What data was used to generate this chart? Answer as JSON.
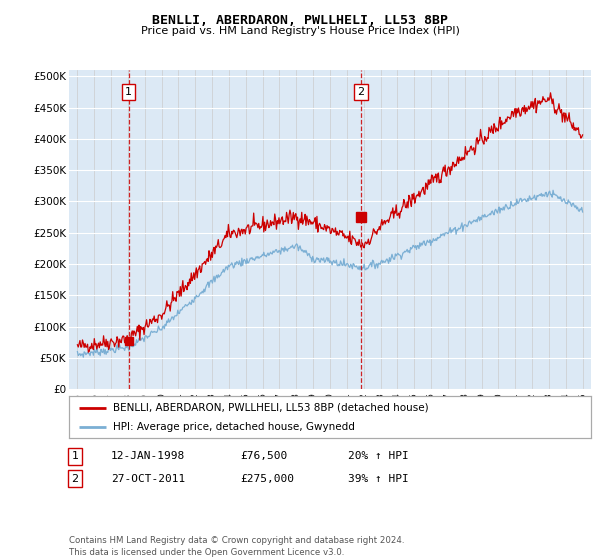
{
  "title": "BENLLI, ABERDARON, PWLLHELI, LL53 8BP",
  "subtitle": "Price paid vs. HM Land Registry's House Price Index (HPI)",
  "bg_color": "#dce9f5",
  "white_bg_color": "#f0f5fb",
  "red_line_color": "#cc0000",
  "blue_line_color": "#7bafd4",
  "vline_color": "#cc0000",
  "legend_label_red": "BENLLI, ABERDARON, PWLLHELI, LL53 8BP (detached house)",
  "legend_label_blue": "HPI: Average price, detached house, Gwynedd",
  "marker1_date": 1998.04,
  "marker1_value": 76500,
  "marker1_label": "1",
  "marker2_date": 2011.82,
  "marker2_value": 275000,
  "marker2_label": "2",
  "annotation1_date": "12-JAN-1998",
  "annotation1_price": "£76,500",
  "annotation1_hpi": "20% ↑ HPI",
  "annotation2_date": "27-OCT-2011",
  "annotation2_price": "£275,000",
  "annotation2_hpi": "39% ↑ HPI",
  "footer": "Contains HM Land Registry data © Crown copyright and database right 2024.\nThis data is licensed under the Open Government Licence v3.0.",
  "ylim": [
    0,
    510000
  ],
  "xlim": [
    1994.5,
    2025.5
  ],
  "yticks": [
    0,
    50000,
    100000,
    150000,
    200000,
    250000,
    300000,
    350000,
    400000,
    450000,
    500000
  ],
  "ytick_labels": [
    "£0",
    "£50K",
    "£100K",
    "£150K",
    "£200K",
    "£250K",
    "£300K",
    "£350K",
    "£400K",
    "£450K",
    "£500K"
  ]
}
